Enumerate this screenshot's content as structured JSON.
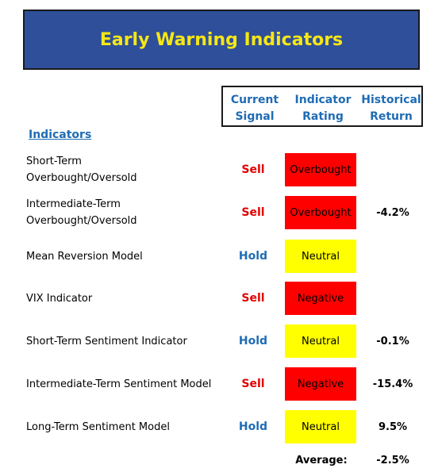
{
  "title": "Early Warning Indicators",
  "headers": {
    "signal": [
      "Current",
      "Signal"
    ],
    "rating": [
      "Indicator",
      "Rating"
    ],
    "return": [
      "Historical",
      "Return"
    ]
  },
  "section_label": "Indicators",
  "colors": {
    "banner_bg": "#2f4f9a",
    "banner_text": "#f6e715",
    "header_blue": "#1f6cb4",
    "sell": "#e00000",
    "hold": "#1f6cb4",
    "overbought": "#ff0000",
    "negative": "#ff0000",
    "neutral": "#ffff00"
  },
  "rows": [
    {
      "name": [
        "Short-Term",
        "Overbought/Oversold"
      ],
      "signal": "Sell",
      "rating": "Overbought",
      "return": ""
    },
    {
      "name": [
        "Intermediate-Term",
        "Overbought/Oversold"
      ],
      "signal": "Sell",
      "rating": "Overbought",
      "return": "-4.2%"
    },
    {
      "name": [
        "Mean Reversion Model"
      ],
      "signal": "Hold",
      "rating": "Neutral",
      "return": ""
    },
    {
      "name": [
        "VIX Indicator"
      ],
      "signal": "Sell",
      "rating": "Negative",
      "return": ""
    },
    {
      "name": [
        "Short-Term Sentiment Indicator"
      ],
      "signal": "Hold",
      "rating": "Neutral",
      "return": "-0.1%"
    },
    {
      "name": [
        "Intermediate-Term Sentiment Model"
      ],
      "signal": "Sell",
      "rating": "Negative",
      "return": "-15.4%"
    },
    {
      "name": [
        "Long-Term Sentiment Model"
      ],
      "signal": "Hold",
      "rating": "Neutral",
      "return": "9.5%"
    }
  ],
  "average": {
    "label": "Average:",
    "value": "-2.5%"
  }
}
